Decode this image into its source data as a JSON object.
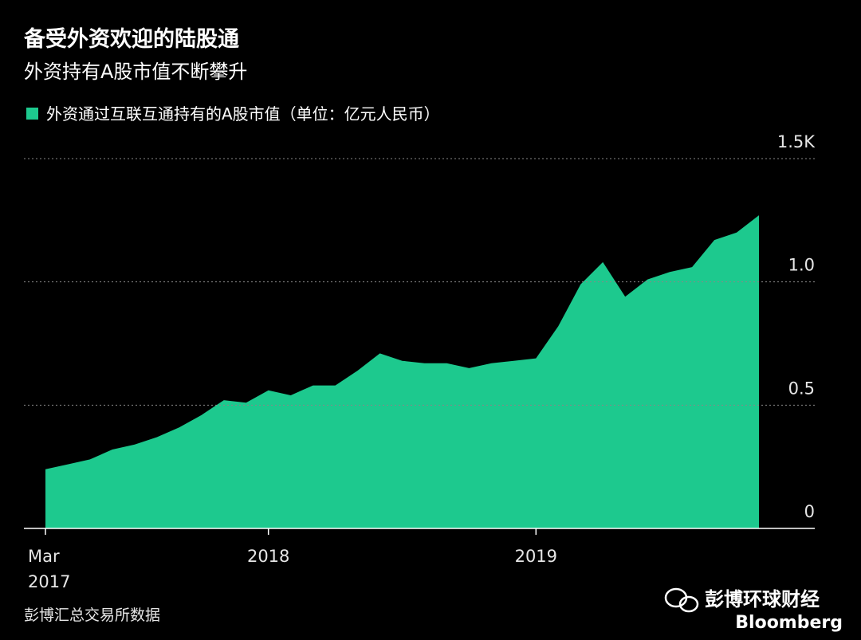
{
  "title": "备受外资欢迎的陆股通",
  "subtitle": "外资持有A股市值不断攀升",
  "source": "彭博汇总交易所数据",
  "watermark": {
    "account": "彭博环球财经",
    "brand": "Bloomberg"
  },
  "chart_data": {
    "type": "area",
    "series": [
      {
        "name": "外资通过互联互通持有的A股市值（单位：亿元人民币）",
        "color": "#1dc98e",
        "values": [
          0.24,
          0.26,
          0.28,
          0.32,
          0.34,
          0.37,
          0.41,
          0.46,
          0.52,
          0.51,
          0.56,
          0.54,
          0.58,
          0.58,
          0.64,
          0.71,
          0.68,
          0.67,
          0.67,
          0.65,
          0.67,
          0.68,
          0.69,
          0.82,
          0.99,
          1.08,
          0.94,
          1.01,
          1.04,
          1.06,
          1.17,
          1.2,
          1.27
        ]
      }
    ],
    "x": [
      "2017-03",
      "2017-04",
      "2017-05",
      "2017-06",
      "2017-07",
      "2017-08",
      "2017-09",
      "2017-10",
      "2017-11",
      "2017-12",
      "2018-01",
      "2018-02",
      "2018-03",
      "2018-04",
      "2018-05",
      "2018-06",
      "2018-07",
      "2018-08",
      "2018-09",
      "2018-10",
      "2018-11",
      "2018-12",
      "2019-01",
      "2019-02",
      "2019-03",
      "2019-04",
      "2019-05",
      "2019-06",
      "2019-07",
      "2019-08",
      "2019-09",
      "2019-10",
      "2019-11"
    ],
    "xlim": [
      "2017-03",
      "2019-11"
    ],
    "xticks": [
      {
        "value": "2017-03",
        "label": [
          "Mar",
          "2017"
        ]
      },
      {
        "value": "2018-01",
        "label": "2018"
      },
      {
        "value": "2019-01",
        "label": "2019"
      }
    ],
    "ylim": [
      0,
      1.5
    ],
    "yticks": [
      0,
      0.5,
      {
        "value": 1,
        "label": "1.0"
      },
      {
        "value": 1.5,
        "label": "1.5K"
      }
    ],
    "grid": true
  }
}
